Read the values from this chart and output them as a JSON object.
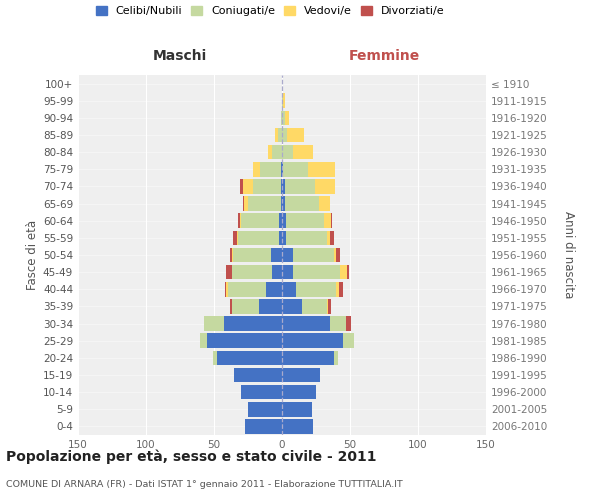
{
  "age_groups": [
    "0-4",
    "5-9",
    "10-14",
    "15-19",
    "20-24",
    "25-29",
    "30-34",
    "35-39",
    "40-44",
    "45-49",
    "50-54",
    "55-59",
    "60-64",
    "65-69",
    "70-74",
    "75-79",
    "80-84",
    "85-89",
    "90-94",
    "95-99",
    "100+"
  ],
  "birth_years": [
    "2006-2010",
    "2001-2005",
    "1996-2000",
    "1991-1995",
    "1986-1990",
    "1981-1985",
    "1976-1980",
    "1971-1975",
    "1966-1970",
    "1961-1965",
    "1956-1960",
    "1951-1955",
    "1946-1950",
    "1941-1945",
    "1936-1940",
    "1931-1935",
    "1926-1930",
    "1921-1925",
    "1916-1920",
    "1911-1915",
    "≤ 1910"
  ],
  "male": {
    "celibi": [
      27,
      25,
      30,
      35,
      48,
      55,
      43,
      17,
      12,
      7,
      8,
      2,
      2,
      1,
      1,
      1,
      0,
      0,
      0,
      0,
      0
    ],
    "coniugati": [
      0,
      0,
      0,
      0,
      3,
      5,
      14,
      20,
      28,
      30,
      28,
      30,
      28,
      24,
      20,
      15,
      7,
      3,
      1,
      0,
      0
    ],
    "vedovi": [
      0,
      0,
      0,
      0,
      0,
      0,
      0,
      0,
      1,
      0,
      1,
      1,
      1,
      3,
      8,
      5,
      3,
      2,
      0,
      0,
      0
    ],
    "divorziati": [
      0,
      0,
      0,
      0,
      0,
      0,
      0,
      1,
      1,
      4,
      1,
      3,
      1,
      1,
      2,
      0,
      0,
      0,
      0,
      0,
      0
    ]
  },
  "female": {
    "nubili": [
      23,
      22,
      25,
      28,
      38,
      45,
      35,
      15,
      10,
      8,
      8,
      3,
      3,
      2,
      2,
      1,
      0,
      0,
      0,
      0,
      0
    ],
    "coniugate": [
      0,
      0,
      0,
      0,
      3,
      8,
      12,
      18,
      30,
      35,
      30,
      30,
      28,
      25,
      22,
      18,
      8,
      4,
      2,
      1,
      0
    ],
    "vedove": [
      0,
      0,
      0,
      0,
      0,
      0,
      0,
      1,
      2,
      5,
      2,
      2,
      5,
      8,
      15,
      20,
      15,
      12,
      3,
      1,
      0
    ],
    "divorziate": [
      0,
      0,
      0,
      0,
      0,
      0,
      4,
      2,
      3,
      1,
      3,
      3,
      1,
      0,
      0,
      0,
      0,
      0,
      0,
      0,
      0
    ]
  },
  "colors": {
    "celibi": "#4472c4",
    "coniugati": "#c5d9a0",
    "vedovi": "#ffd966",
    "divorziati": "#c0504d"
  },
  "title": "Popolazione per età, sesso e stato civile - 2011",
  "subtitle": "COMUNE DI ARNARA (FR) - Dati ISTAT 1° gennaio 2011 - Elaborazione TUTTITALIA.IT",
  "xlabel_left": "Maschi",
  "xlabel_right": "Femmine",
  "ylabel_left": "Fasce di età",
  "ylabel_right": "Anni di nascita",
  "xlim": 150,
  "bg_color": "#ffffff",
  "plot_bg": "#efefef",
  "grid_color": "#ffffff",
  "legend_labels": [
    "Celibi/Nubili",
    "Coniugati/e",
    "Vedovi/e",
    "Divorziati/e"
  ]
}
